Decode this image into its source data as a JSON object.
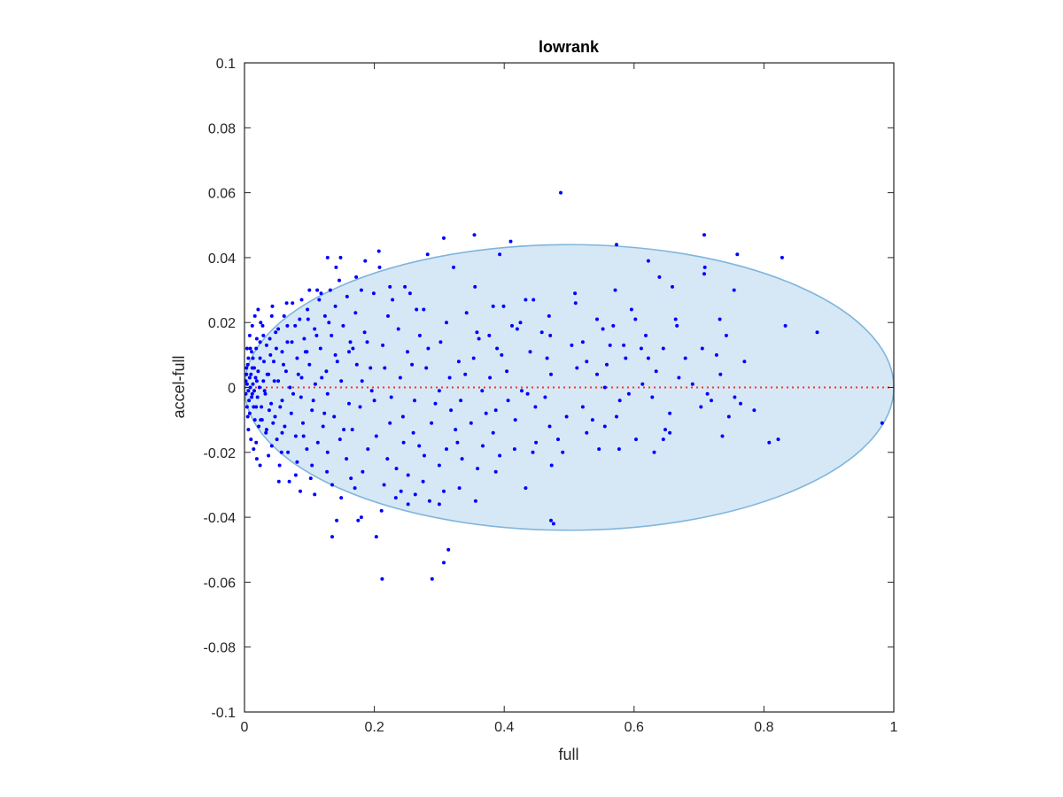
{
  "chart_data": {
    "type": "scatter",
    "title": "lowrank",
    "xlabel": "full",
    "ylabel": "accel-full",
    "xlim": [
      0,
      1
    ],
    "ylim": [
      -0.1,
      0.1
    ],
    "xticks": [
      0,
      0.2,
      0.4,
      0.6,
      0.8,
      1
    ],
    "xtick_labels": [
      "0",
      "0.2",
      "0.4",
      "0.6",
      "0.8",
      "1"
    ],
    "yticks": [
      -0.1,
      -0.08,
      -0.06,
      -0.04,
      -0.02,
      0,
      0.02,
      0.04,
      0.06,
      0.08,
      0.1
    ],
    "ytick_labels": [
      "-0.1",
      "-0.08",
      "-0.06",
      "-0.04",
      "-0.02",
      "0",
      "0.02",
      "0.04",
      "0.06",
      "0.08",
      "0.1"
    ],
    "grid": false,
    "colors": {
      "points": "#0000ff",
      "ellipse_fill": "#d6e8f5",
      "ellipse_edge": "#7fb5dd",
      "zero_line": "#ff3030"
    },
    "reference_line": {
      "y": 0,
      "style": "dotted"
    },
    "ellipse": {
      "center": [
        0.5,
        0
      ],
      "semi_x": 0.5,
      "semi_y": 0.044
    },
    "points": [
      [
        0.487,
        0.06
      ],
      [
        0.354,
        0.047
      ],
      [
        0.307,
        0.046
      ],
      [
        0.41,
        0.045
      ],
      [
        0.708,
        0.047
      ],
      [
        0.573,
        0.044
      ],
      [
        0.282,
        0.041
      ],
      [
        0.393,
        0.041
      ],
      [
        0.207,
        0.042
      ],
      [
        0.759,
        0.041
      ],
      [
        0.828,
        0.04
      ],
      [
        0.128,
        0.04
      ],
      [
        0.148,
        0.04
      ],
      [
        0.186,
        0.039
      ],
      [
        0.622,
        0.039
      ],
      [
        0.709,
        0.037
      ],
      [
        0.322,
        0.037
      ],
      [
        0.208,
        0.037
      ],
      [
        0.141,
        0.037
      ],
      [
        0.708,
        0.035
      ],
      [
        0.639,
        0.034
      ],
      [
        0.659,
        0.031
      ],
      [
        0.571,
        0.03
      ],
      [
        0.754,
        0.03
      ],
      [
        0.18,
        0.03
      ],
      [
        0.224,
        0.031
      ],
      [
        0.247,
        0.031
      ],
      [
        0.355,
        0.031
      ],
      [
        0.509,
        0.029
      ],
      [
        0.112,
        0.03
      ],
      [
        0.1,
        0.03
      ],
      [
        0.445,
        0.027
      ],
      [
        0.433,
        0.027
      ],
      [
        0.51,
        0.026
      ],
      [
        0.383,
        0.025
      ],
      [
        0.265,
        0.024
      ],
      [
        0.399,
        0.025
      ],
      [
        0.276,
        0.024
      ],
      [
        0.342,
        0.023
      ],
      [
        0.596,
        0.024
      ],
      [
        0.221,
        0.022
      ],
      [
        0.469,
        0.022
      ],
      [
        0.061,
        0.022
      ],
      [
        0.425,
        0.02
      ],
      [
        0.543,
        0.021
      ],
      [
        0.602,
        0.021
      ],
      [
        0.664,
        0.021
      ],
      [
        0.732,
        0.021
      ],
      [
        0.833,
        0.019
      ],
      [
        0.568,
        0.019
      ],
      [
        0.552,
        0.018
      ],
      [
        0.666,
        0.019
      ],
      [
        0.882,
        0.017
      ],
      [
        0.42,
        0.018
      ],
      [
        0.358,
        0.017
      ],
      [
        0.27,
        0.016
      ],
      [
        0.377,
        0.016
      ],
      [
        0.471,
        0.016
      ],
      [
        0.521,
        0.014
      ],
      [
        0.302,
        0.014
      ],
      [
        0.189,
        0.014
      ],
      [
        0.584,
        0.013
      ],
      [
        0.645,
        0.012
      ],
      [
        0.611,
        0.012
      ],
      [
        0.705,
        0.012
      ],
      [
        0.504,
        0.013
      ],
      [
        0.44,
        0.011
      ],
      [
        0.396,
        0.01
      ],
      [
        0.251,
        0.011
      ],
      [
        0.161,
        0.011
      ],
      [
        0.096,
        0.011
      ],
      [
        0.727,
        0.01
      ],
      [
        0.622,
        0.009
      ],
      [
        0.587,
        0.009
      ],
      [
        0.466,
        0.009
      ],
      [
        0.353,
        0.009
      ],
      [
        0.33,
        0.008
      ],
      [
        0.77,
        0.008
      ],
      [
        0.558,
        0.007
      ],
      [
        0.527,
        0.008
      ],
      [
        0.216,
        0.006
      ],
      [
        0.28,
        0.006
      ],
      [
        0.404,
        0.005
      ],
      [
        0.634,
        0.005
      ],
      [
        0.733,
        0.004
      ],
      [
        0.669,
        0.003
      ],
      [
        0.543,
        0.004
      ],
      [
        0.472,
        0.004
      ],
      [
        0.378,
        0.003
      ],
      [
        0.316,
        0.003
      ],
      [
        0.24,
        0.003
      ],
      [
        0.181,
        0.002
      ],
      [
        0.69,
        0.001
      ],
      [
        0.613,
        0.001
      ],
      [
        0.555,
        0.0
      ],
      [
        0.366,
        -0.001
      ],
      [
        0.427,
        -0.001
      ],
      [
        0.3,
        -0.001
      ],
      [
        0.713,
        -0.002
      ],
      [
        0.755,
        -0.003
      ],
      [
        0.628,
        -0.003
      ],
      [
        0.578,
        -0.004
      ],
      [
        0.463,
        -0.003
      ],
      [
        0.406,
        -0.004
      ],
      [
        0.333,
        -0.004
      ],
      [
        0.262,
        -0.004
      ],
      [
        0.2,
        -0.004
      ],
      [
        0.764,
        -0.005
      ],
      [
        0.785,
        -0.007
      ],
      [
        0.703,
        -0.006
      ],
      [
        0.521,
        -0.006
      ],
      [
        0.448,
        -0.006
      ],
      [
        0.387,
        -0.007
      ],
      [
        0.318,
        -0.007
      ],
      [
        0.746,
        -0.009
      ],
      [
        0.655,
        -0.008
      ],
      [
        0.573,
        -0.009
      ],
      [
        0.496,
        -0.009
      ],
      [
        0.417,
        -0.01
      ],
      [
        0.982,
        -0.011
      ],
      [
        0.349,
        -0.011
      ],
      [
        0.288,
        -0.011
      ],
      [
        0.224,
        -0.011
      ],
      [
        0.555,
        -0.012
      ],
      [
        0.47,
        -0.012
      ],
      [
        0.383,
        -0.014
      ],
      [
        0.527,
        -0.014
      ],
      [
        0.26,
        -0.014
      ],
      [
        0.655,
        -0.014
      ],
      [
        0.736,
        -0.015
      ],
      [
        0.645,
        -0.016
      ],
      [
        0.603,
        -0.016
      ],
      [
        0.822,
        -0.016
      ],
      [
        0.808,
        -0.017
      ],
      [
        0.449,
        -0.017
      ],
      [
        0.328,
        -0.017
      ],
      [
        0.245,
        -0.017
      ],
      [
        0.367,
        -0.018
      ],
      [
        0.416,
        -0.019
      ],
      [
        0.546,
        -0.019
      ],
      [
        0.577,
        -0.019
      ],
      [
        0.311,
        -0.019
      ],
      [
        0.19,
        -0.019
      ],
      [
        0.49,
        -0.02
      ],
      [
        0.444,
        -0.02
      ],
      [
        0.631,
        -0.02
      ],
      [
        0.277,
        -0.021
      ],
      [
        0.393,
        -0.021
      ],
      [
        0.335,
        -0.022
      ],
      [
        0.22,
        -0.022
      ],
      [
        0.473,
        -0.024
      ],
      [
        0.3,
        -0.024
      ],
      [
        0.359,
        -0.025
      ],
      [
        0.387,
        -0.026
      ],
      [
        0.234,
        -0.025
      ],
      [
        0.252,
        -0.027
      ],
      [
        0.275,
        -0.029
      ],
      [
        0.331,
        -0.031
      ],
      [
        0.433,
        -0.031
      ],
      [
        0.17,
        -0.031
      ],
      [
        0.307,
        -0.032
      ],
      [
        0.263,
        -0.033
      ],
      [
        0.356,
        -0.035
      ],
      [
        0.233,
        -0.034
      ],
      [
        0.285,
        -0.035
      ],
      [
        0.252,
        -0.036
      ],
      [
        0.3,
        -0.036
      ],
      [
        0.211,
        -0.038
      ],
      [
        0.18,
        -0.04
      ],
      [
        0.142,
        -0.041
      ],
      [
        0.175,
        -0.041
      ],
      [
        0.472,
        -0.041
      ],
      [
        0.476,
        -0.042
      ],
      [
        0.135,
        -0.046
      ],
      [
        0.203,
        -0.046
      ],
      [
        0.314,
        -0.05
      ],
      [
        0.307,
        -0.054
      ],
      [
        0.289,
        -0.059
      ],
      [
        0.212,
        -0.059
      ],
      [
        0.149,
        -0.034
      ],
      [
        0.108,
        -0.033
      ],
      [
        0.086,
        -0.032
      ],
      [
        0.069,
        -0.029
      ],
      [
        0.053,
        -0.029
      ],
      [
        0.127,
        -0.026
      ],
      [
        0.104,
        -0.024
      ],
      [
        0.081,
        -0.023
      ],
      [
        0.157,
        -0.022
      ],
      [
        0.128,
        -0.02
      ],
      [
        0.067,
        -0.02
      ],
      [
        0.096,
        -0.019
      ],
      [
        0.042,
        -0.018
      ],
      [
        0.113,
        -0.017
      ],
      [
        0.147,
        -0.016
      ],
      [
        0.079,
        -0.015
      ],
      [
        0.058,
        -0.014
      ],
      [
        0.034,
        -0.013
      ],
      [
        0.166,
        -0.013
      ],
      [
        0.121,
        -0.012
      ],
      [
        0.09,
        -0.011
      ],
      [
        0.025,
        -0.01
      ],
      [
        0.047,
        -0.009
      ],
      [
        0.138,
        -0.009
      ],
      [
        0.072,
        -0.008
      ],
      [
        0.104,
        -0.007
      ],
      [
        0.018,
        -0.006
      ],
      [
        0.041,
        -0.005
      ],
      [
        0.161,
        -0.005
      ],
      [
        0.058,
        -0.004
      ],
      [
        0.087,
        -0.003
      ],
      [
        0.012,
        -0.002
      ],
      [
        0.128,
        -0.002
      ],
      [
        0.031,
        -0.001
      ],
      [
        0.196,
        -0.001
      ],
      [
        0.07,
        0.0
      ],
      [
        0.109,
        0.001
      ],
      [
        0.019,
        0.002
      ],
      [
        0.052,
        0.002
      ],
      [
        0.149,
        0.002
      ],
      [
        0.008,
        0.003
      ],
      [
        0.088,
        0.003
      ],
      [
        0.037,
        0.004
      ],
      [
        0.126,
        0.005
      ],
      [
        0.064,
        0.005
      ],
      [
        0.015,
        0.006
      ],
      [
        0.1,
        0.007
      ],
      [
        0.173,
        0.007
      ],
      [
        0.045,
        0.008
      ],
      [
        0.024,
        0.009
      ],
      [
        0.081,
        0.009
      ],
      [
        0.14,
        0.01
      ],
      [
        0.058,
        0.011
      ],
      [
        0.011,
        0.011
      ],
      [
        0.117,
        0.012
      ],
      [
        0.034,
        0.013
      ],
      [
        0.073,
        0.014
      ],
      [
        0.163,
        0.014
      ],
      [
        0.092,
        0.015
      ],
      [
        0.019,
        0.015
      ],
      [
        0.134,
        0.016
      ],
      [
        0.048,
        0.017
      ],
      [
        0.108,
        0.018
      ],
      [
        0.066,
        0.019
      ],
      [
        0.152,
        0.019
      ],
      [
        0.028,
        0.019
      ],
      [
        0.085,
        0.021
      ],
      [
        0.124,
        0.022
      ],
      [
        0.042,
        0.022
      ],
      [
        0.171,
        0.023
      ],
      [
        0.097,
        0.024
      ],
      [
        0.14,
        0.025
      ],
      [
        0.074,
        0.026
      ],
      [
        0.115,
        0.027
      ],
      [
        0.158,
        0.028
      ],
      [
        0.132,
        0.03
      ],
      [
        0.004,
        0.001
      ],
      [
        0.006,
        -0.001
      ],
      [
        0.003,
        0.004
      ],
      [
        0.007,
        -0.004
      ],
      [
        0.002,
        0.002
      ],
      [
        0.009,
        0.0
      ],
      [
        0.005,
        0.007
      ],
      [
        0.004,
        -0.006
      ],
      [
        0.01,
        0.004
      ],
      [
        0.011,
        -0.003
      ],
      [
        0.002,
        -0.002
      ],
      [
        0.013,
        0.001
      ],
      [
        0.006,
        0.009
      ],
      [
        0.008,
        -0.008
      ],
      [
        0.015,
        -0.001
      ],
      [
        0.003,
        0.006
      ],
      [
        0.012,
        0.006
      ],
      [
        0.014,
        -0.006
      ],
      [
        0.017,
        0.003
      ],
      [
        0.005,
        -0.009
      ],
      [
        0.02,
        -0.003
      ],
      [
        0.009,
        0.012
      ],
      [
        0.021,
        0.005
      ],
      [
        0.016,
        -0.01
      ],
      [
        0.023,
        0.0
      ],
      [
        0.013,
        0.009
      ],
      [
        0.026,
        -0.006
      ],
      [
        0.018,
        0.012
      ],
      [
        0.029,
        0.002
      ],
      [
        0.022,
        -0.012
      ],
      [
        0.03,
        0.008
      ],
      [
        0.027,
        -0.01
      ],
      [
        0.032,
        -0.002
      ],
      [
        0.024,
        0.014
      ],
      [
        0.035,
        0.004
      ],
      [
        0.033,
        -0.014
      ],
      [
        0.038,
        -0.007
      ],
      [
        0.029,
        0.016
      ],
      [
        0.04,
        0.01
      ],
      [
        0.044,
        -0.011
      ],
      [
        0.039,
        0.015
      ],
      [
        0.046,
        0.002
      ],
      [
        0.05,
        -0.016
      ],
      [
        0.049,
        0.012
      ],
      [
        0.055,
        -0.006
      ],
      [
        0.052,
        0.018
      ],
      [
        0.06,
        0.007
      ],
      [
        0.062,
        -0.012
      ],
      [
        0.057,
        -0.02
      ],
      [
        0.066,
        0.014
      ],
      [
        0.075,
        -0.002
      ],
      [
        0.078,
        0.019
      ],
      [
        0.083,
        0.004
      ],
      [
        0.091,
        -0.015
      ],
      [
        0.094,
        0.011
      ],
      [
        0.098,
        0.021
      ],
      [
        0.106,
        -0.004
      ],
      [
        0.111,
        0.016
      ],
      [
        0.119,
        0.003
      ],
      [
        0.123,
        -0.008
      ],
      [
        0.13,
        0.02
      ],
      [
        0.143,
        0.008
      ],
      [
        0.153,
        -0.013
      ],
      [
        0.167,
        0.012
      ],
      [
        0.178,
        -0.006
      ],
      [
        0.185,
        0.017
      ],
      [
        0.194,
        0.006
      ],
      [
        0.203,
        -0.015
      ],
      [
        0.213,
        0.013
      ],
      [
        0.226,
        -0.003
      ],
      [
        0.237,
        0.018
      ],
      [
        0.244,
        -0.009
      ],
      [
        0.258,
        0.007
      ],
      [
        0.269,
        -0.018
      ],
      [
        0.283,
        0.012
      ],
      [
        0.294,
        -0.005
      ],
      [
        0.311,
        0.02
      ],
      [
        0.325,
        -0.013
      ],
      [
        0.34,
        0.004
      ],
      [
        0.361,
        0.015
      ],
      [
        0.372,
        -0.008
      ],
      [
        0.389,
        0.012
      ],
      [
        0.412,
        0.019
      ],
      [
        0.436,
        -0.002
      ],
      [
        0.458,
        0.017
      ],
      [
        0.483,
        -0.016
      ],
      [
        0.512,
        0.006
      ],
      [
        0.536,
        -0.01
      ],
      [
        0.563,
        0.013
      ],
      [
        0.592,
        -0.002
      ],
      [
        0.618,
        0.016
      ],
      [
        0.648,
        -0.013
      ],
      [
        0.679,
        0.009
      ],
      [
        0.719,
        -0.004
      ],
      [
        0.742,
        0.016
      ],
      [
        0.018,
        -0.017
      ],
      [
        0.025,
        0.02
      ],
      [
        0.037,
        -0.021
      ],
      [
        0.043,
        0.025
      ],
      [
        0.054,
        -0.024
      ],
      [
        0.065,
        0.026
      ],
      [
        0.079,
        -0.027
      ],
      [
        0.088,
        0.027
      ],
      [
        0.102,
        -0.028
      ],
      [
        0.118,
        0.029
      ],
      [
        0.135,
        -0.03
      ],
      [
        0.146,
        0.033
      ],
      [
        0.164,
        -0.028
      ],
      [
        0.172,
        0.034
      ],
      [
        0.182,
        -0.026
      ],
      [
        0.199,
        0.029
      ],
      [
        0.215,
        -0.03
      ],
      [
        0.228,
        0.027
      ],
      [
        0.241,
        -0.032
      ],
      [
        0.255,
        0.029
      ],
      [
        0.004,
        0.012
      ],
      [
        0.006,
        -0.013
      ],
      [
        0.008,
        0.016
      ],
      [
        0.01,
        -0.016
      ],
      [
        0.012,
        0.019
      ],
      [
        0.014,
        -0.019
      ],
      [
        0.016,
        0.022
      ],
      [
        0.019,
        -0.022
      ],
      [
        0.021,
        0.024
      ],
      [
        0.024,
        -0.024
      ]
    ]
  }
}
